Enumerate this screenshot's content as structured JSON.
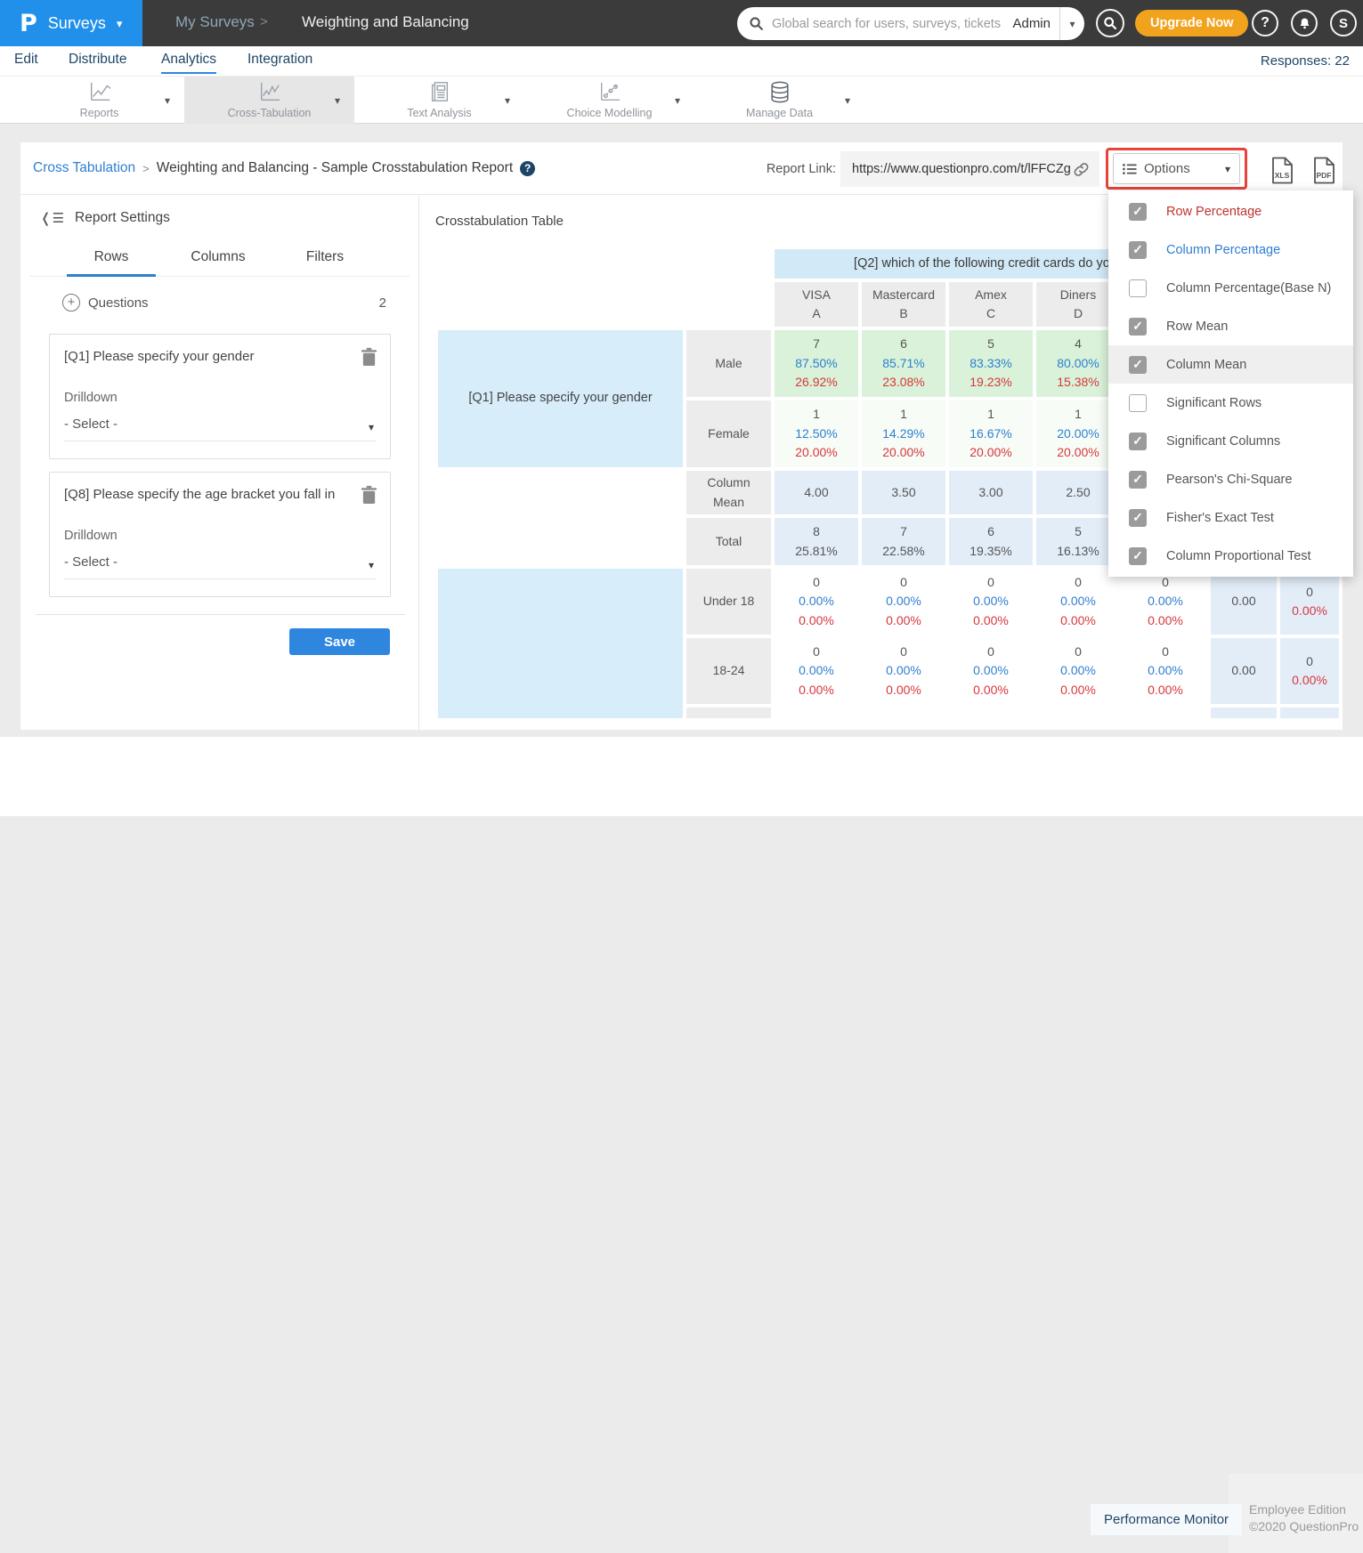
{
  "topbar": {
    "logo_letter": "P",
    "product_menu": "Surveys",
    "breadcrumb": "My Surveys",
    "breadcrumb_sep": ">",
    "page_title": "Weighting and Balancing",
    "search_placeholder": "Global search for users, surveys, tickets",
    "search_scope": "Admin",
    "upgrade_label": "Upgrade Now",
    "help_label": "?",
    "avatar_initial": "S"
  },
  "nav": {
    "items": [
      "Edit",
      "Distribute",
      "Analytics",
      "Integration"
    ],
    "responses": "Responses: 22"
  },
  "toolbar": {
    "items": [
      "Reports",
      "Cross-Tabulation",
      "Text Analysis",
      "Choice Modelling",
      "Manage Data"
    ]
  },
  "report_header": {
    "breadcrumb_link": "Cross Tabulation",
    "sep": ">",
    "title": "Weighting and Balancing - Sample Crosstabulation Report",
    "help": "?",
    "report_link_label": "Report Link:",
    "report_url": "https://www.questionpro.com/t/lFFCZg",
    "options_label": "Options",
    "xls_label": "XLS",
    "pdf_label": "PDF"
  },
  "settings": {
    "title": "Report Settings",
    "tabs": [
      "Rows",
      "Columns",
      "Filters"
    ],
    "questions_label": "Questions",
    "questions_count": "2",
    "cards": [
      {
        "question": "[Q1] Please specify your gender",
        "drilldown": "Drilldown",
        "select": "- Select -"
      },
      {
        "question": "[Q8] Please specify the age bracket you fall in",
        "drilldown": "Drilldown",
        "select": "- Select -"
      }
    ],
    "save_label": "Save"
  },
  "crosstab": {
    "section_title": "Crosstabulation Table",
    "banner": "[Q2] which of the following credit cards do you o",
    "columns": [
      [
        "VISA",
        "A"
      ],
      [
        "Mastercard",
        "B"
      ],
      [
        "Amex",
        "C"
      ],
      [
        "Diners",
        "D"
      ]
    ],
    "q1_label": "[Q1] Please specify your gender",
    "q1_rows": [
      {
        "label": "Male",
        "style": "green",
        "cells": [
          [
            "7",
            "87.50%",
            "26.92%"
          ],
          [
            "6",
            "85.71%",
            "23.08%"
          ],
          [
            "5",
            "83.33%",
            "19.23%"
          ],
          [
            "4",
            "80.00%",
            "15.38%"
          ]
        ]
      },
      {
        "label": "Female",
        "style": "pale",
        "cells": [
          [
            "1",
            "12.50%",
            "20.00%"
          ],
          [
            "1",
            "14.29%",
            "20.00%"
          ],
          [
            "1",
            "16.67%",
            "20.00%"
          ],
          [
            "1",
            "20.00%",
            "20.00%"
          ]
        ]
      }
    ],
    "column_mean_row": {
      "label": "Column Mean",
      "cells": [
        "4.00",
        "3.50",
        "3.00",
        "2.50"
      ]
    },
    "total_row": {
      "label": "Total",
      "cells": [
        [
          "8",
          "25.81%"
        ],
        [
          "7",
          "22.58%"
        ],
        [
          "6",
          "19.35%"
        ],
        [
          "5",
          "16.13%"
        ]
      ]
    },
    "q8_rows": [
      {
        "label": "Under 18",
        "cells": [
          [
            "0",
            "0.00%",
            "0.00%"
          ],
          [
            "0",
            "0.00%",
            "0.00%"
          ],
          [
            "0",
            "0.00%",
            "0.00%"
          ],
          [
            "0",
            "0.00%",
            "0.00%"
          ],
          [
            "0",
            "0.00%",
            "0.00%"
          ]
        ],
        "row_mean": "0.00",
        "total": [
          "0",
          "0.00%"
        ]
      },
      {
        "label": "18-24",
        "cells": [
          [
            "0",
            "0.00%",
            "0.00%"
          ],
          [
            "0",
            "0.00%",
            "0.00%"
          ],
          [
            "0",
            "0.00%",
            "0.00%"
          ],
          [
            "0",
            "0.00%",
            "0.00%"
          ],
          [
            "0",
            "0.00%",
            "0.00%"
          ]
        ],
        "row_mean": "0.00",
        "total": [
          "0",
          "0.00%"
        ]
      }
    ],
    "colors": {
      "row_pct": "#2e7fd1",
      "col_pct": "#d9363c",
      "count": "#555555",
      "green_cell": "#d9f2d9",
      "blue_cell": "#e3edf8",
      "banner_cell": "#d2e9f7"
    }
  },
  "options_menu": {
    "highlight_border": "#e8433a",
    "items": [
      {
        "label": "Row Percentage",
        "checked": true,
        "color": "#c0342f"
      },
      {
        "label": "Column Percentage",
        "checked": true,
        "color": "#2e7fd1"
      },
      {
        "label": "Column Percentage(Base N)",
        "checked": false
      },
      {
        "label": "Row Mean",
        "checked": true
      },
      {
        "label": "Column Mean",
        "checked": true,
        "highlighted": true
      },
      {
        "label": "Significant Rows",
        "checked": false
      },
      {
        "label": "Significant Columns",
        "checked": true
      },
      {
        "label": "Pearson's Chi-Square",
        "checked": true
      },
      {
        "label": "Fisher's Exact Test",
        "checked": true
      },
      {
        "label": "Column Proportional Test",
        "checked": true
      }
    ]
  },
  "footer": {
    "link": "Performance Monitor",
    "edition": "Employee Edition",
    "copyright": "©2020 QuestionPro"
  }
}
